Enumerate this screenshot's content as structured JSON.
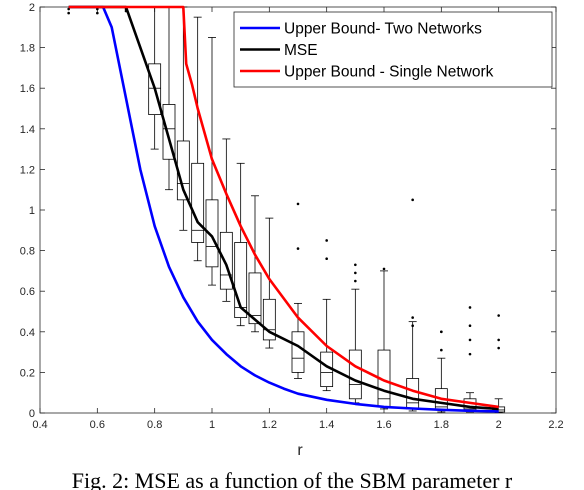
{
  "caption": "Fig. 2: MSE as a function of the SBM parameter r",
  "chart_data": {
    "type": "line",
    "xlabel": "r",
    "ylabel": "",
    "xlim": [
      0.4,
      2.2
    ],
    "ylim": [
      0,
      2
    ],
    "xticks": [
      "0.4",
      "0.6",
      "0.8",
      "1",
      "1.2",
      "1.4",
      "1.6",
      "1.8",
      "2",
      "2.2"
    ],
    "yticks": [
      "0",
      "0.2",
      "0.4",
      "0.6",
      "0.8",
      "1",
      "1.2",
      "1.4",
      "1.6",
      "1.8",
      "2"
    ],
    "legend_position": "top-right",
    "series": [
      {
        "name": "Upper Bound- Two Networks",
        "color": "#0000ff",
        "x": [
          0.5,
          0.55,
          0.6,
          0.62,
          0.65,
          0.7,
          0.75,
          0.8,
          0.85,
          0.9,
          0.95,
          1.0,
          1.05,
          1.1,
          1.15,
          1.2,
          1.25,
          1.3,
          1.4,
          1.5,
          1.6,
          1.7,
          1.8,
          1.9,
          2.0
        ],
        "y": [
          2,
          2,
          2,
          2,
          1.9,
          1.55,
          1.2,
          0.92,
          0.72,
          0.57,
          0.45,
          0.36,
          0.29,
          0.23,
          0.185,
          0.15,
          0.12,
          0.095,
          0.065,
          0.045,
          0.03,
          0.022,
          0.016,
          0.011,
          0.008
        ]
      },
      {
        "name": "MSE",
        "color": "#000000",
        "x": [
          0.5,
          0.6,
          0.7,
          0.8,
          0.85,
          0.9,
          0.95,
          1.0,
          1.05,
          1.1,
          1.15,
          1.2,
          1.3,
          1.4,
          1.5,
          1.6,
          1.7,
          1.8,
          1.9,
          2.0
        ],
        "y": [
          2,
          2,
          2,
          1.6,
          1.35,
          1.1,
          0.94,
          0.87,
          0.73,
          0.52,
          0.46,
          0.4,
          0.33,
          0.23,
          0.16,
          0.11,
          0.07,
          0.05,
          0.03,
          0.02
        ]
      },
      {
        "name": "Upper Bound - Single Network",
        "color": "#ff0000",
        "x": [
          0.5,
          0.6,
          0.7,
          0.8,
          0.85,
          0.9,
          0.91,
          0.93,
          0.95,
          1.0,
          1.05,
          1.1,
          1.15,
          1.2,
          1.3,
          1.4,
          1.5,
          1.6,
          1.7,
          1.8,
          1.9,
          2.0
        ],
        "y": [
          2,
          2,
          2,
          2,
          2,
          2,
          1.72,
          1.62,
          1.5,
          1.25,
          1.08,
          0.92,
          0.78,
          0.66,
          0.47,
          0.33,
          0.23,
          0.16,
          0.11,
          0.07,
          0.05,
          0.03
        ]
      }
    ],
    "boxes": {
      "color": "#000000",
      "x": [
        0.8,
        0.85,
        0.9,
        0.95,
        1.0,
        1.05,
        1.1,
        1.15,
        1.2,
        1.3,
        1.4,
        1.5,
        1.6,
        1.7,
        1.8,
        1.9,
        2.0
      ],
      "q1": [
        1.47,
        1.25,
        1.05,
        0.84,
        0.72,
        0.61,
        0.47,
        0.44,
        0.36,
        0.2,
        0.13,
        0.07,
        0.03,
        0.02,
        0.015,
        0.01,
        0.005
      ],
      "median": [
        1.6,
        1.4,
        1.13,
        0.9,
        0.82,
        0.68,
        0.52,
        0.48,
        0.41,
        0.27,
        0.2,
        0.14,
        0.07,
        0.05,
        0.03,
        0.02,
        0.015
      ],
      "q3": [
        1.72,
        1.52,
        1.34,
        1.23,
        1.05,
        0.89,
        0.84,
        0.69,
        0.56,
        0.4,
        0.3,
        0.31,
        0.31,
        0.17,
        0.12,
        0.07,
        0.03
      ],
      "whisker_low": [
        1.3,
        1.1,
        0.9,
        0.75,
        0.63,
        0.55,
        0.43,
        0.4,
        0.32,
        0.17,
        0.11,
        0.05,
        0.02,
        0.01,
        0.005,
        0.005,
        0.002
      ],
      "whisker_high": [
        2,
        2,
        2,
        1.95,
        1.85,
        1.35,
        1.23,
        1.07,
        0.96,
        0.54,
        0.56,
        0.61,
        0.7,
        0.45,
        0.27,
        0.1,
        0.07
      ],
      "outliers": [
        [
          0.5,
          1.97
        ],
        [
          0.5,
          1.99
        ],
        [
          0.6,
          1.97
        ],
        [
          0.6,
          1.99
        ],
        [
          0.7,
          1.98
        ],
        [
          0.7,
          1.99
        ],
        [
          1.3,
          1.03
        ],
        [
          1.3,
          0.81
        ],
        [
          1.4,
          0.85
        ],
        [
          1.4,
          0.76
        ],
        [
          1.5,
          0.73
        ],
        [
          1.5,
          0.69
        ],
        [
          1.5,
          0.65
        ],
        [
          1.6,
          0.71
        ],
        [
          1.7,
          1.05
        ],
        [
          1.7,
          0.47
        ],
        [
          1.7,
          0.43
        ],
        [
          1.8,
          0.4
        ],
        [
          1.8,
          0.4
        ],
        [
          1.8,
          0.31
        ],
        [
          1.9,
          0.52
        ],
        [
          1.9,
          0.43
        ],
        [
          1.9,
          0.36
        ],
        [
          1.9,
          0.29
        ],
        [
          2.0,
          0.48
        ],
        [
          2.0,
          0.36
        ],
        [
          2.0,
          0.32
        ]
      ]
    }
  }
}
